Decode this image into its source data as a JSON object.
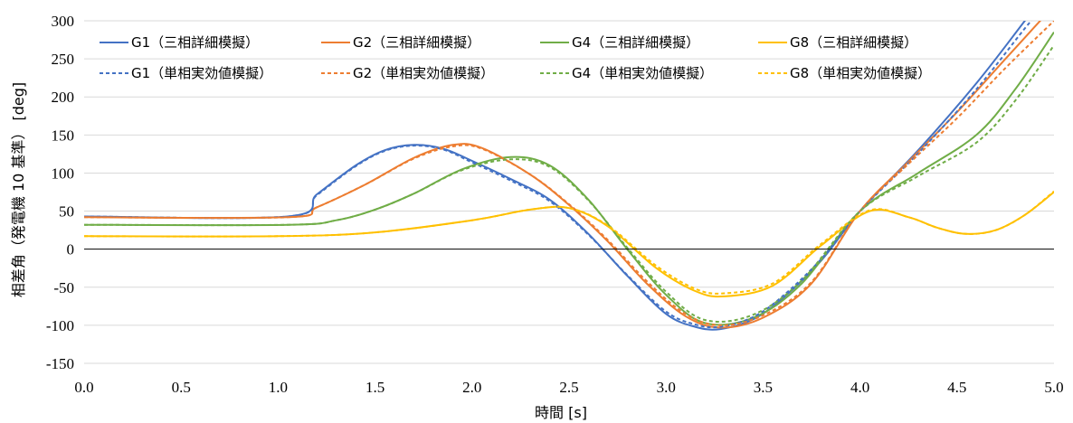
{
  "chart_data": {
    "type": "line",
    "title": "",
    "xlabel": "時間 [s]",
    "ylabel": "相差角（発電機 10 基準） [deg]",
    "xlim": [
      0,
      5
    ],
    "ylim": [
      -150,
      300
    ],
    "xticks": [
      0,
      0.5,
      1,
      1.5,
      2,
      2.5,
      3,
      3.5,
      4,
      4.5,
      5
    ],
    "xtick_labels": [
      "0.0",
      "0.5",
      "1.0",
      "1.5",
      "2.0",
      "2.5",
      "3.0",
      "3.5",
      "4.0",
      "4.5",
      "5.0"
    ],
    "yticks": [
      -150,
      -100,
      -50,
      0,
      50,
      100,
      150,
      200,
      250,
      300
    ],
    "ytick_labels": [
      "-150",
      "-100",
      "-50",
      "0",
      "50",
      "100",
      "150",
      "200",
      "250",
      "300"
    ],
    "grid": "horizontal",
    "legend_position": "top",
    "series": [
      {
        "name": "G1（三相詳細模擬）",
        "color": "#4472C4",
        "dash": "solid",
        "x": [
          0,
          1.05,
          1.2,
          1.4,
          1.55,
          1.7,
          1.85,
          2.0,
          2.2,
          2.4,
          2.6,
          2.8,
          3.0,
          3.15,
          3.28,
          3.45,
          3.6,
          3.8,
          4.0,
          4.3,
          4.6,
          4.85,
          5.0
        ],
        "values": [
          43,
          43,
          72,
          110,
          130,
          137,
          132,
          116,
          92,
          65,
          20,
          -35,
          -85,
          -102,
          -105,
          -92,
          -65,
          -15,
          50,
          130,
          218,
          300,
          350
        ]
      },
      {
        "name": "G2（三相詳細模擬）",
        "color": "#ED7D31",
        "dash": "solid",
        "x": [
          0,
          1.05,
          1.2,
          1.45,
          1.7,
          1.9,
          2.05,
          2.3,
          2.5,
          2.7,
          2.9,
          3.1,
          3.28,
          3.5,
          3.75,
          4.0,
          4.25,
          4.5,
          4.75,
          5.0
        ],
        "values": [
          42,
          42,
          55,
          85,
          120,
          137,
          133,
          98,
          58,
          10,
          -45,
          -88,
          -103,
          -90,
          -45,
          50,
          115,
          180,
          250,
          320
        ]
      },
      {
        "name": "G4（三相詳細模擬）",
        "color": "#70AD47",
        "dash": "solid",
        "x": [
          0,
          1.05,
          1.3,
          1.5,
          1.7,
          1.95,
          2.2,
          2.4,
          2.6,
          2.8,
          3.0,
          3.2,
          3.45,
          3.7,
          4.0,
          4.3,
          4.6,
          4.8,
          5.0
        ],
        "values": [
          32,
          32,
          38,
          52,
          73,
          105,
          121,
          110,
          65,
          0,
          -60,
          -97,
          -90,
          -45,
          50,
          100,
          150,
          210,
          285
        ]
      },
      {
        "name": "G8（三相詳細模擬）",
        "color": "#FFC000",
        "dash": "solid",
        "x": [
          0,
          1.0,
          1.5,
          2.0,
          2.3,
          2.5,
          2.7,
          2.95,
          3.15,
          3.3,
          3.55,
          3.8,
          4.05,
          4.25,
          4.4,
          4.55,
          4.7,
          4.85,
          5.0
        ],
        "values": [
          17,
          17,
          22,
          38,
          52,
          54,
          30,
          -25,
          -55,
          -62,
          -48,
          5,
          50,
          42,
          28,
          20,
          25,
          45,
          75
        ]
      },
      {
        "name": "G1（単相実効値模擬）",
        "color": "#4472C4",
        "dash": "dashed",
        "x": [
          0,
          1.05,
          1.2,
          1.4,
          1.55,
          1.7,
          1.85,
          2.0,
          2.2,
          2.4,
          2.6,
          2.8,
          3.0,
          3.15,
          3.28,
          3.45,
          3.6,
          3.8,
          4.0,
          4.3,
          4.6,
          4.85,
          5.0
        ],
        "values": [
          43,
          43,
          71,
          109,
          129,
          136,
          131,
          114,
          90,
          63,
          19,
          -34,
          -82,
          -99,
          -102,
          -89,
          -62,
          -13,
          50,
          126,
          210,
          290,
          335
        ]
      },
      {
        "name": "G2（単相実効値模擬）",
        "color": "#ED7D31",
        "dash": "dashed",
        "x": [
          0,
          1.05,
          1.2,
          1.45,
          1.7,
          1.9,
          2.05,
          2.3,
          2.5,
          2.7,
          2.9,
          3.1,
          3.28,
          3.5,
          3.75,
          4.0,
          4.25,
          4.5,
          4.75,
          5.0
        ],
        "values": [
          42,
          42,
          55,
          85,
          119,
          135,
          132,
          98,
          59,
          12,
          -42,
          -85,
          -100,
          -87,
          -43,
          50,
          112,
          172,
          238,
          300
        ]
      },
      {
        "name": "G4（単相実効値模擬）",
        "color": "#70AD47",
        "dash": "dashed",
        "x": [
          0,
          1.05,
          1.3,
          1.5,
          1.7,
          1.95,
          2.2,
          2.4,
          2.6,
          2.8,
          3.0,
          3.2,
          3.45,
          3.7,
          4.0,
          4.3,
          4.6,
          4.8,
          5.0
        ],
        "values": [
          32,
          32,
          38,
          52,
          73,
          104,
          118,
          108,
          64,
          2,
          -56,
          -93,
          -86,
          -41,
          50,
          96,
          140,
          195,
          268
        ]
      },
      {
        "name": "G8（単相実効値模擬）",
        "color": "#FFC000",
        "dash": "dashed",
        "x": [
          0,
          1.0,
          1.5,
          2.0,
          2.3,
          2.5,
          2.7,
          2.95,
          3.15,
          3.3,
          3.55,
          3.8,
          4.05,
          4.25,
          4.4,
          4.55,
          4.7,
          4.85,
          5.0
        ],
        "values": [
          17,
          17,
          22,
          38,
          52,
          54,
          31,
          -22,
          -52,
          -58,
          -45,
          7,
          51,
          42,
          28,
          20,
          25,
          45,
          76
        ]
      }
    ]
  }
}
